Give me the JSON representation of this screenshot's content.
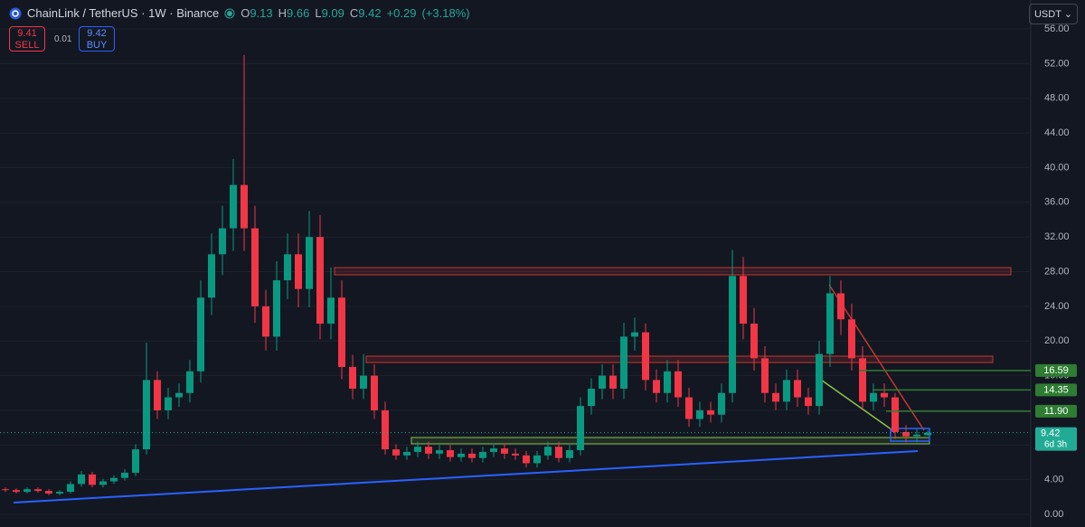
{
  "header": {
    "title": "ChainLink / TetherUS · 1W · Binance",
    "ohlc_keys": [
      "O",
      "H",
      "L",
      "C"
    ],
    "ohlc_values": [
      9.13,
      9.66,
      9.09,
      9.42
    ],
    "change": "+0.29",
    "change_pct": "(+3.18%)"
  },
  "trade": {
    "sell_price": 9.41,
    "sell_label": "SELL",
    "spread": 0.01,
    "buy_price": 9.42,
    "buy_label": "BUY"
  },
  "currency": "USDT",
  "chart_data": {
    "type": "candlestick",
    "up_color": "#089981",
    "down_color": "#f23645",
    "ylim": [
      0,
      56
    ],
    "yticks": [
      {
        "value": 0,
        "label": "0.00"
      },
      {
        "value": 4,
        "label": "4.00"
      },
      {
        "value": 8,
        "label": "8.00"
      },
      {
        "value": 12,
        "label": "12.00"
      },
      {
        "value": 16,
        "label": "16.00"
      },
      {
        "value": 20,
        "label": "20.00"
      },
      {
        "value": 24,
        "label": "24.00"
      },
      {
        "value": 28,
        "label": "28.00"
      },
      {
        "value": 32,
        "label": "32.00"
      },
      {
        "value": 36,
        "label": "36.00"
      },
      {
        "value": 40,
        "label": "40.00"
      },
      {
        "value": 44,
        "label": "44.00"
      },
      {
        "value": 48,
        "label": "48.00"
      },
      {
        "value": 52,
        "label": "52.00"
      },
      {
        "value": 56,
        "label": "56.00"
      }
    ],
    "open": [
      2.9,
      2.8,
      2.6,
      2.9,
      2.7,
      2.4,
      2.6,
      3.5,
      4.6,
      3.4,
      3.8,
      4.2,
      4.8,
      7.5,
      15.5,
      12,
      13.5,
      14,
      16.5,
      25,
      30,
      33,
      38,
      33,
      24,
      20.5,
      27,
      30,
      26,
      32,
      22,
      25,
      17,
      14.5,
      16,
      12,
      7.5,
      6.8,
      7.2,
      7.8,
      7,
      7.4,
      6.6,
      7,
      6.5,
      7.2,
      7.6,
      7,
      6.8,
      5.9,
      6.8,
      7.8,
      6.5,
      7.4,
      12.5,
      14.5,
      16,
      14.5,
      20.5,
      21,
      15.5,
      14,
      16.5,
      13.5,
      11,
      12,
      11.5,
      14,
      27.5,
      22,
      18,
      14,
      13,
      15.5,
      13.5,
      12.5,
      18.5,
      25.5,
      22.5,
      18,
      13,
      14,
      13.5,
      9.5,
      9,
      9.13
    ],
    "high": [
      3.1,
      3,
      3.1,
      3.1,
      2.9,
      2.8,
      3.8,
      5,
      4.9,
      4.1,
      4.5,
      5.2,
      8.1,
      19.8,
      16.5,
      14.6,
      15.1,
      17.8,
      27,
      32.4,
      35.6,
      41,
      53,
      35.6,
      25.9,
      29.2,
      32.4,
      32.4,
      35,
      34.5,
      28.5,
      27,
      18.4,
      18.5,
      17.3,
      13,
      8.1,
      7.8,
      8.4,
      8.4,
      8,
      8,
      7.6,
      7.6,
      7.8,
      8.2,
      8.2,
      7.6,
      7.3,
      7.3,
      8.4,
      8.4,
      8,
      13.5,
      15.7,
      17.3,
      17.3,
      22.1,
      22.7,
      22,
      16.7,
      17.8,
      17.8,
      14.6,
      13,
      13,
      15.1,
      30.5,
      29.7,
      23.8,
      19.4,
      15.1,
      16.7,
      16.7,
      14.6,
      20,
      27.5,
      27,
      24.3,
      19.4,
      15.1,
      15.1,
      14,
      10.3,
      9.9,
      9.66
    ],
    "low": [
      2.6,
      2.4,
      2.4,
      2.5,
      2.2,
      2.2,
      2.4,
      3.2,
      3.1,
      3.1,
      3.5,
      3.9,
      4.4,
      6.9,
      11,
      11,
      12.4,
      12.9,
      15.2,
      23,
      27.6,
      30.4,
      30.4,
      22.1,
      18.9,
      18.9,
      24.8,
      23.9,
      23.9,
      20.2,
      20.2,
      15.6,
      13.3,
      13.3,
      11,
      6.9,
      6.3,
      6.3,
      6.6,
      6.4,
      6.4,
      6.1,
      6.1,
      6,
      6,
      6.6,
      6.4,
      6.3,
      5.4,
      5.4,
      6.3,
      6,
      6,
      6.8,
      11.5,
      13.3,
      13.3,
      13.3,
      18.9,
      14.3,
      12.9,
      12.9,
      12.4,
      10.1,
      10.1,
      10.6,
      10.6,
      12.9,
      20.2,
      16.6,
      12.9,
      12,
      12,
      12.4,
      11.5,
      11.5,
      17,
      20.7,
      16.6,
      12,
      12,
      12.4,
      8.7,
      8.3,
      8.3,
      9.09
    ],
    "close": [
      2.8,
      2.6,
      2.9,
      2.7,
      2.4,
      2.6,
      3.5,
      4.6,
      3.4,
      3.8,
      4.2,
      4.8,
      7.5,
      15.5,
      12,
      13.5,
      14,
      16.5,
      25,
      30,
      33,
      38,
      33,
      24,
      20.5,
      27,
      30,
      26,
      32,
      22,
      25,
      17,
      14.5,
      16,
      12,
      7.5,
      6.8,
      7.2,
      7.8,
      7,
      7.4,
      6.6,
      7,
      6.5,
      7.2,
      7.6,
      7,
      6.8,
      5.9,
      6.8,
      7.8,
      6.5,
      7.4,
      12.5,
      14.5,
      16,
      14.5,
      20.5,
      21,
      15.5,
      14,
      16.5,
      13.5,
      11,
      12,
      11.5,
      14,
      27.5,
      22,
      18,
      14,
      13,
      15.5,
      13.5,
      12.5,
      18.5,
      25.5,
      22.5,
      18,
      13,
      14,
      13.5,
      9.5,
      9,
      9.2,
      9.42
    ],
    "levels": [
      16.59,
      14.35,
      {
        "value": 11.9,
        "label": "11.90"
      }
    ],
    "level_color": "#2e7d32",
    "last_price": 9.42,
    "countdown": "6d 3h",
    "last_color": "#22ab94"
  }
}
